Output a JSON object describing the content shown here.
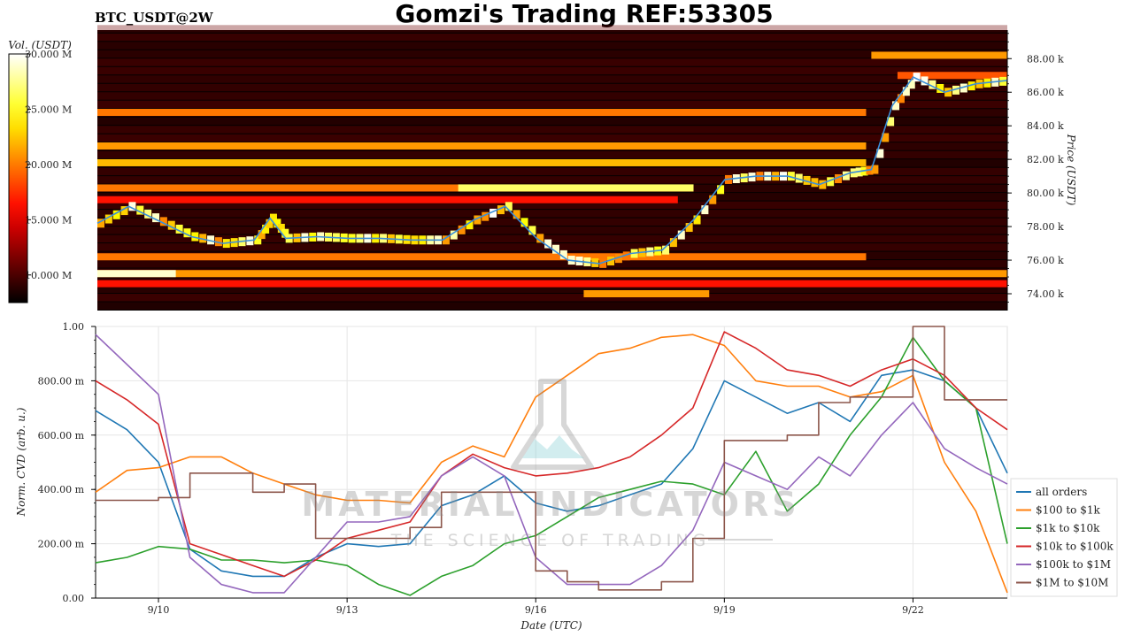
{
  "header": {
    "title": "Gomzi's Trading REF:53305",
    "symbol": "BTC_USDT@2W"
  },
  "colors": {
    "all_orders": "#1f77b4",
    "s100_1k": "#ff7f0e",
    "s1k_10k": "#2ca02c",
    "s10k_100k": "#d62728",
    "s100k_1M": "#9467bd",
    "s1M_10M": "#8c564b",
    "price_line": "#3b8fd9"
  },
  "watermark": {
    "line1": "MATERIAL INDICATORS",
    "line2": "THE SCIENCE OF TRADING"
  },
  "chart_data": [
    {
      "type": "heatmap",
      "colorbar": {
        "label": "Vol. (USDT)",
        "ticks": [
          "30.000 M",
          "25.000 M",
          "20.000 M",
          "15.000 M",
          "10.000 M"
        ],
        "tick_values": [
          30000000,
          25000000,
          20000000,
          15000000,
          10000000
        ],
        "range": [
          7500000,
          30000000
        ],
        "colormap": "hot"
      },
      "ylabel": "Price (USDT)",
      "yticks": [
        "88.00 k",
        "86.00 k",
        "84.00 k",
        "82.00 k",
        "80.00 k",
        "78.00 k",
        "76.00 k",
        "74.00 k"
      ],
      "ytick_values": [
        88000,
        86000,
        84000,
        82000,
        80000,
        78000,
        76000,
        74000
      ],
      "ylim": [
        73000,
        89700
      ],
      "xlim": [
        "2024-09-09",
        "2024-09-23 12:00"
      ],
      "price_series": {
        "x": [
          "2024-09-09",
          "2024-09-09 12:00",
          "2024-09-10",
          "2024-09-10 12:00",
          "2024-09-11",
          "2024-09-11 12:00",
          "2024-09-11 18:00",
          "2024-09-12",
          "2024-09-12 12:00",
          "2024-09-13",
          "2024-09-13 12:00",
          "2024-09-14",
          "2024-09-14 12:00",
          "2024-09-15",
          "2024-09-15 12:00",
          "2024-09-16",
          "2024-09-16 12:00",
          "2024-09-17",
          "2024-09-17 12:00",
          "2024-09-18",
          "2024-09-18 12:00",
          "2024-09-19",
          "2024-09-19 12:00",
          "2024-09-20",
          "2024-09-20 12:00",
          "2024-09-21",
          "2024-09-21 08:00",
          "2024-09-21 16:00",
          "2024-09-22",
          "2024-09-22 12:00",
          "2024-09-23",
          "2024-09-23 12:00"
        ],
        "y": [
          78200,
          79200,
          78300,
          77400,
          77000,
          77200,
          78500,
          77300,
          77400,
          77300,
          77300,
          77200,
          77200,
          78400,
          79200,
          77300,
          76000,
          75800,
          76400,
          76600,
          78400,
          80800,
          81000,
          81000,
          80500,
          81200,
          81400,
          85200,
          86900,
          86000,
          86500,
          86700
        ]
      },
      "levels": [
        {
          "price": 88200,
          "from": "2024-09-21 08:00",
          "to": "2024-09-23 12:00",
          "intensity": 0.6
        },
        {
          "price": 87000,
          "from": "2024-09-21 18:00",
          "to": "2024-09-23 12:00",
          "intensity": 0.5
        },
        {
          "price": 84800,
          "from": "2024-09-09",
          "to": "2024-09-21 06:00",
          "intensity": 0.55
        },
        {
          "price": 82800,
          "from": "2024-09-09",
          "to": "2024-09-21 06:00",
          "intensity": 0.6
        },
        {
          "price": 81800,
          "from": "2024-09-09",
          "to": "2024-09-21 06:00",
          "intensity": 0.65
        },
        {
          "price": 80300,
          "from": "2024-09-09",
          "to": "2024-09-18 12:00",
          "intensity": 0.55
        },
        {
          "price": 80300,
          "from": "2024-09-14 18:00",
          "to": "2024-09-18 12:00",
          "intensity": 0.85
        },
        {
          "price": 79600,
          "from": "2024-09-09",
          "to": "2024-09-18 06:00",
          "intensity": 0.4
        },
        {
          "price": 76200,
          "from": "2024-09-09",
          "to": "2024-09-21 06:00",
          "intensity": 0.55
        },
        {
          "price": 75200,
          "from": "2024-09-09",
          "to": "2024-09-23 12:00",
          "intensity": 0.6
        },
        {
          "price": 75200,
          "from": "2024-09-09",
          "to": "2024-09-10 06:00",
          "intensity": 0.95
        },
        {
          "price": 74600,
          "from": "2024-09-09",
          "to": "2024-09-23 12:00",
          "intensity": 0.4
        },
        {
          "price": 74000,
          "from": "2024-09-16 18:00",
          "to": "2024-09-18 18:00",
          "intensity": 0.6
        }
      ]
    },
    {
      "type": "line",
      "ylabel": "Norm. CVD (arb. u.)",
      "xlabel": "Date (UTC)",
      "ylim": [
        0,
        1
      ],
      "yticks": [
        "1.00",
        "800.00 m",
        "600.00 m",
        "400.00 m",
        "200.00 m",
        "0.00"
      ],
      "ytick_values": [
        1.0,
        0.8,
        0.6,
        0.4,
        0.2,
        0.0
      ],
      "xticks": [
        "9/10",
        "9/13",
        "9/16",
        "9/19",
        "9/22"
      ],
      "xtick_values": [
        "2024-09-10",
        "2024-09-13",
        "2024-09-16",
        "2024-09-19",
        "2024-09-22"
      ],
      "xlim": [
        "2024-09-09",
        "2024-09-23 12:00"
      ],
      "grid": true,
      "legend": "lower-right",
      "x": [
        "2024-09-09",
        "2024-09-09 12:00",
        "2024-09-10",
        "2024-09-10 12:00",
        "2024-09-11",
        "2024-09-11 12:00",
        "2024-09-12",
        "2024-09-12 12:00",
        "2024-09-13",
        "2024-09-13 12:00",
        "2024-09-14",
        "2024-09-14 12:00",
        "2024-09-15",
        "2024-09-15 12:00",
        "2024-09-16",
        "2024-09-16 12:00",
        "2024-09-17",
        "2024-09-17 12:00",
        "2024-09-18",
        "2024-09-18 12:00",
        "2024-09-19",
        "2024-09-19 12:00",
        "2024-09-20",
        "2024-09-20 12:00",
        "2024-09-21",
        "2024-09-21 12:00",
        "2024-09-22",
        "2024-09-22 12:00",
        "2024-09-23",
        "2024-09-23 12:00"
      ],
      "series": [
        {
          "name": "all orders",
          "values": [
            0.69,
            0.62,
            0.5,
            0.18,
            0.1,
            0.08,
            0.08,
            0.15,
            0.2,
            0.19,
            0.2,
            0.34,
            0.38,
            0.45,
            0.35,
            0.32,
            0.34,
            0.38,
            0.42,
            0.55,
            0.8,
            0.74,
            0.68,
            0.72,
            0.65,
            0.82,
            0.84,
            0.8,
            0.7,
            0.46
          ]
        },
        {
          "name": "$100 to $1k",
          "values": [
            0.39,
            0.47,
            0.48,
            0.52,
            0.52,
            0.46,
            0.42,
            0.38,
            0.36,
            0.36,
            0.35,
            0.5,
            0.56,
            0.52,
            0.74,
            0.82,
            0.9,
            0.92,
            0.96,
            0.97,
            0.93,
            0.8,
            0.78,
            0.78,
            0.74,
            0.76,
            0.82,
            0.5,
            0.32,
            0.02
          ]
        },
        {
          "name": "$1k to $10k",
          "values": [
            0.13,
            0.15,
            0.19,
            0.18,
            0.14,
            0.14,
            0.13,
            0.14,
            0.12,
            0.05,
            0.01,
            0.08,
            0.12,
            0.2,
            0.23,
            0.3,
            0.37,
            0.4,
            0.43,
            0.42,
            0.38,
            0.54,
            0.32,
            0.42,
            0.6,
            0.74,
            0.96,
            0.8,
            0.7,
            0.2
          ]
        },
        {
          "name": "$10k to $100k",
          "values": [
            0.8,
            0.73,
            0.64,
            0.2,
            0.16,
            0.12,
            0.08,
            0.14,
            0.22,
            0.25,
            0.28,
            0.45,
            0.53,
            0.48,
            0.45,
            0.46,
            0.48,
            0.52,
            0.6,
            0.7,
            0.98,
            0.92,
            0.84,
            0.82,
            0.78,
            0.84,
            0.88,
            0.82,
            0.7,
            0.62
          ]
        },
        {
          "name": "$100k to $1M",
          "values": [
            0.97,
            0.86,
            0.75,
            0.15,
            0.05,
            0.02,
            0.02,
            0.15,
            0.28,
            0.28,
            0.3,
            0.45,
            0.52,
            0.45,
            0.15,
            0.05,
            0.05,
            0.05,
            0.12,
            0.25,
            0.5,
            0.45,
            0.4,
            0.52,
            0.45,
            0.6,
            0.72,
            0.55,
            0.48,
            0.42
          ]
        },
        {
          "name": "$1M to $10M",
          "values": [
            0.36,
            0.36,
            0.37,
            0.46,
            0.46,
            0.39,
            0.42,
            0.22,
            0.22,
            0.22,
            0.26,
            0.39,
            0.39,
            0.39,
            0.1,
            0.06,
            0.03,
            0.03,
            0.06,
            0.22,
            0.58,
            0.58,
            0.6,
            0.72,
            0.74,
            0.74,
            1.0,
            0.73,
            0.73,
            0.73
          ]
        }
      ]
    }
  ]
}
